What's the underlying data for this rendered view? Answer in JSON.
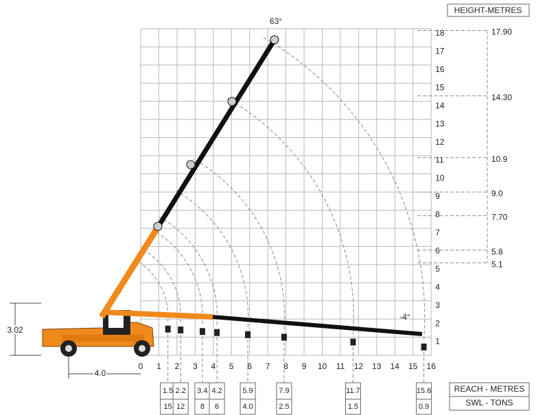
{
  "height_axis": {
    "title": "HEIGHT-METRES",
    "ticks": [
      1,
      2,
      3,
      4,
      5,
      6,
      7,
      8,
      9,
      10,
      11,
      12,
      13,
      14,
      15,
      16,
      17,
      18
    ]
  },
  "reach_axis": {
    "ticks": [
      0,
      1,
      2,
      3,
      4,
      5,
      6,
      7,
      8,
      9,
      10,
      11,
      12,
      13,
      14,
      15,
      16
    ]
  },
  "boom_angles": {
    "max": "63°",
    "min": "-4°"
  },
  "dimensions": {
    "height": "3.02",
    "length": "4.0"
  },
  "max_heights": [
    {
      "value": 17.9,
      "label": "17.90"
    },
    {
      "value": 14.3,
      "label": "14.30"
    },
    {
      "value": 10.9,
      "label": "10.9"
    },
    {
      "value": 9,
      "label": "9.0"
    },
    {
      "value": 7.7,
      "label": "7.70"
    },
    {
      "value": 5.8,
      "label": "5.8"
    },
    {
      "value": 5.1,
      "label": "5.1"
    }
  ],
  "load_table": {
    "reach_label": "REACH - METRES",
    "swl_label": "SWL - TONS",
    "columns": [
      {
        "reach": "1.5",
        "swl": "15"
      },
      {
        "reach": "2.2",
        "swl": "12"
      },
      {
        "reach": "3.4",
        "swl": "8"
      },
      {
        "reach": "4.2",
        "swl": "6"
      },
      {
        "reach": "5.9",
        "swl": "4.0"
      },
      {
        "reach": "7.9",
        "swl": "2.5"
      },
      {
        "reach": "11.7",
        "swl": "1.5"
      },
      {
        "reach": "15.6",
        "swl": "0.9"
      }
    ]
  }
}
